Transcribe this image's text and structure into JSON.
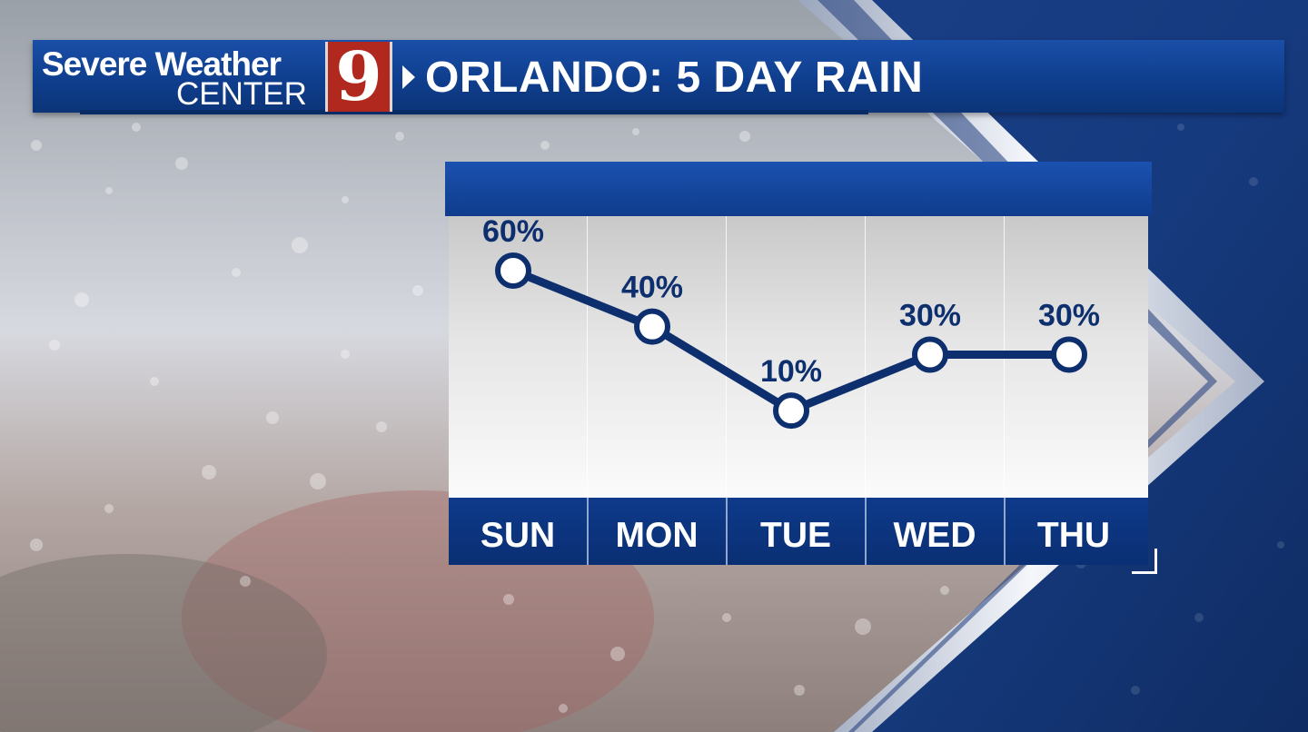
{
  "header": {
    "logo_line1": "Severe Weather",
    "logo_line2": "CENTER",
    "logo_number": "9",
    "title": "ORLANDO: 5 DAY RAIN"
  },
  "colors": {
    "brand_blue": "#0f3e8e",
    "logo_red": "#b1281f",
    "line_navy": "#0d2f6e"
  },
  "chart_data": {
    "type": "line",
    "categories": [
      "SUN",
      "MON",
      "TUE",
      "WED",
      "THU"
    ],
    "series": [
      {
        "values": [
          60,
          40,
          10,
          30,
          30
        ]
      }
    ],
    "data_labels": [
      "60%",
      "40%",
      "10%",
      "30%",
      "30%"
    ],
    "title": "",
    "xlabel": "",
    "ylabel": "",
    "unit": "%"
  }
}
